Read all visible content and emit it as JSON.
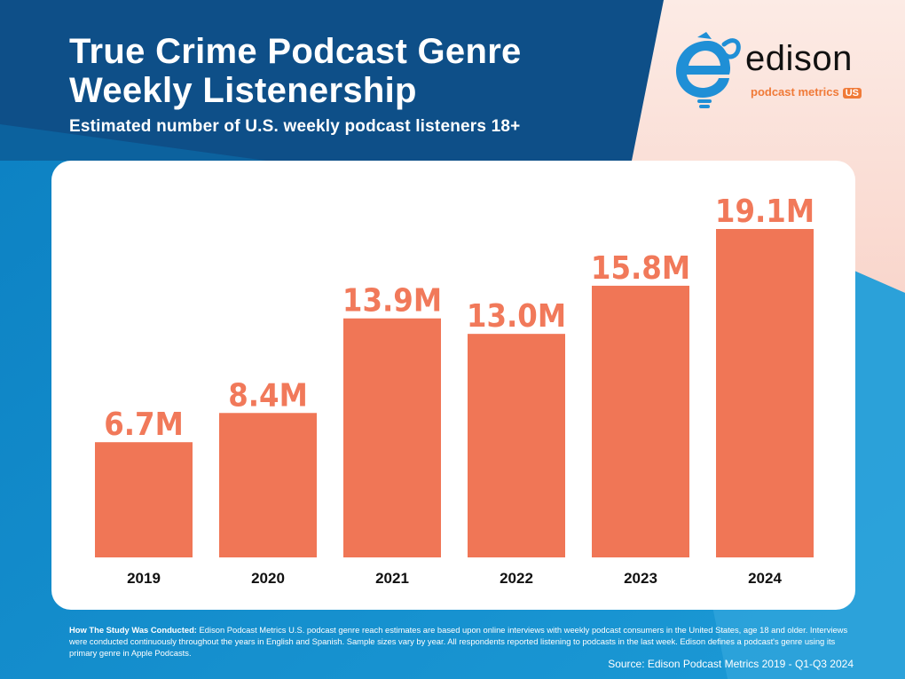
{
  "header": {
    "title_line1": "True Crime Podcast Genre",
    "title_line2": "Weekly Listenership",
    "subtitle": "Estimated number of U.S. weekly podcast listeners 18+"
  },
  "logo": {
    "word": "edison",
    "sub": "podcast metrics",
    "badge": "US"
  },
  "colors": {
    "bar": "#f07656",
    "label": "#f1795a",
    "background_blue": "#0a86c8",
    "header_navy": "#0e4f88",
    "peach": "#fbe3dc"
  },
  "chart_data": {
    "type": "bar",
    "title": "True Crime Podcast Genre Weekly Listenership",
    "ylabel": "Estimated number of U.S. weekly podcast listeners 18+ (millions)",
    "categories": [
      "2019",
      "2020",
      "2021",
      "2022",
      "2023",
      "2024"
    ],
    "values": [
      6.7,
      8.4,
      13.9,
      13.0,
      15.8,
      19.1
    ],
    "labels": [
      "6.7M",
      "8.4M",
      "13.9M",
      "13.0M",
      "15.8M",
      "19.1M"
    ],
    "ylim": [
      0,
      19.1
    ],
    "grid": false
  },
  "footer": {
    "method_heading": "How The Study Was Conducted:",
    "method_text": "Edison Podcast Metrics U.S. podcast genre reach estimates are based upon online interviews with weekly podcast consumers in the United States, age 18 and older. Interviews were conducted continuously throughout the years in English and Spanish. Sample sizes vary by year. All respondents reported listening to podcasts in the last week. Edison defines a podcast's genre using its primary genre in Apple Podcasts.",
    "source": "Source: Edison Podcast Metrics 2019 - Q1-Q3 2024"
  }
}
